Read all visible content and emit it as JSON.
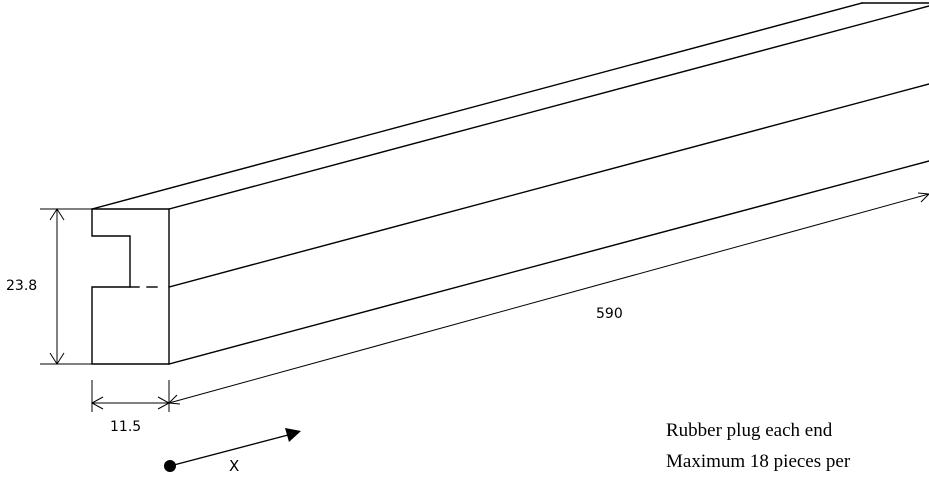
{
  "dimensions": {
    "height": "23.8",
    "width": "11.5",
    "length": "590"
  },
  "axis": {
    "label": "X"
  },
  "notes": [
    "Rubber plug each end",
    "Maximum 18 pieces per"
  ]
}
